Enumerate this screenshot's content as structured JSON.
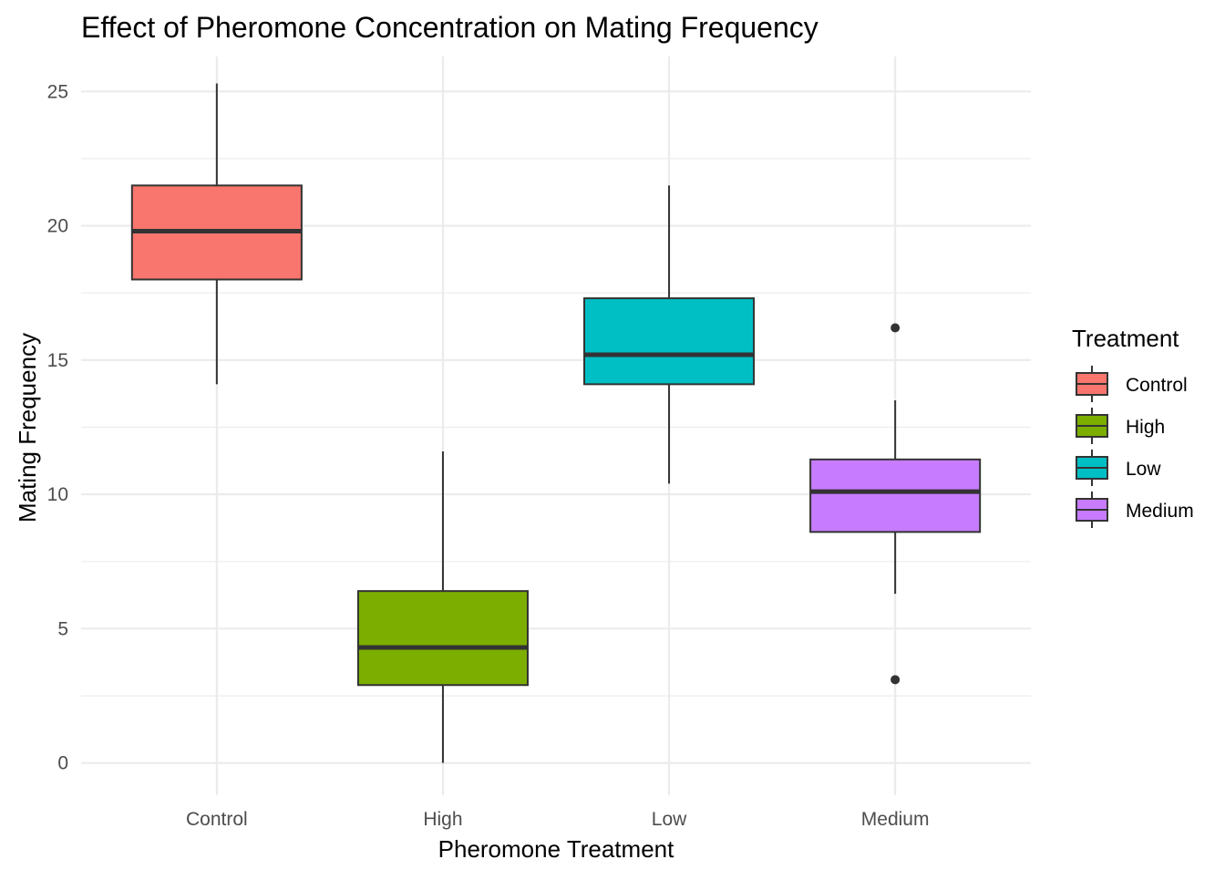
{
  "chart_data": {
    "type": "box",
    "title": "Effect of Pheromone Concentration on Mating Frequency",
    "xlabel": "Pheromone Treatment",
    "ylabel": "Mating Frequency",
    "categories": [
      "Control",
      "High",
      "Low",
      "Medium"
    ],
    "ylim": [
      -1.2,
      26.3
    ],
    "yticks": [
      0,
      5,
      10,
      15,
      20,
      25
    ],
    "grid": true,
    "legend": {
      "title": "Treatment",
      "position": "right",
      "entries": [
        "Control",
        "High",
        "Low",
        "Medium"
      ]
    },
    "colors": {
      "Control": "#F8766D",
      "High": "#7CAE00",
      "Low": "#00BFC4",
      "Medium": "#C77CFF",
      "outline": "#333333",
      "grid": "#EBEBEB"
    },
    "boxes": [
      {
        "category": "Control",
        "whisker_low": 14.1,
        "q1": 18.0,
        "median": 19.8,
        "q3": 21.5,
        "whisker_high": 25.3,
        "outliers": []
      },
      {
        "category": "High",
        "whisker_low": 0.0,
        "q1": 2.9,
        "median": 4.3,
        "q3": 6.4,
        "whisker_high": 11.6,
        "outliers": []
      },
      {
        "category": "Low",
        "whisker_low": 10.4,
        "q1": 14.1,
        "median": 15.2,
        "q3": 17.3,
        "whisker_high": 21.5,
        "outliers": []
      },
      {
        "category": "Medium",
        "whisker_low": 6.3,
        "q1": 8.6,
        "median": 10.1,
        "q3": 11.3,
        "whisker_high": 13.5,
        "outliers": [
          16.2,
          3.1
        ]
      }
    ]
  }
}
